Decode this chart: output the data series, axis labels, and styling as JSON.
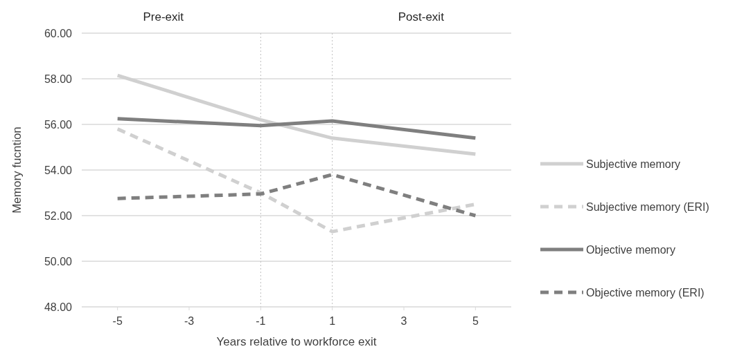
{
  "chart_data": {
    "type": "line",
    "xlabel": "Years relative to workforce exit",
    "ylabel": "Memory fucntion",
    "annotations": [
      "Pre-exit",
      "Post-exit"
    ],
    "x": [
      -5,
      -1,
      1,
      5
    ],
    "xlim": [
      -6,
      6
    ],
    "xticks": [
      -5,
      -3,
      -1,
      1,
      3,
      5
    ],
    "ylim": [
      48,
      60
    ],
    "yticks": [
      {
        "value": 48,
        "label": "48.00"
      },
      {
        "value": 50,
        "label": "50.00"
      },
      {
        "value": 52,
        "label": "52.00"
      },
      {
        "value": 54,
        "label": "54.00"
      },
      {
        "value": 56,
        "label": "56.00"
      },
      {
        "value": 58,
        "label": "58.00"
      },
      {
        "value": 60,
        "label": "60.00"
      }
    ],
    "grid": "y",
    "legend": "right",
    "marker": "none",
    "ref_lines": [
      {
        "axis": "x",
        "value": -1,
        "color": "#bfbfbf",
        "line_style": "dotted"
      },
      {
        "axis": "x",
        "value": 1,
        "color": "#bfbfbf",
        "line_style": "dotted"
      }
    ],
    "series": [
      {
        "name": "Subjective memory",
        "color": "#d0d0d0",
        "line_style": "solid",
        "values": [
          58.15,
          56.2,
          55.4,
          54.7
        ]
      },
      {
        "name": "Subjective memory (ERI)",
        "color": "#d0d0d0",
        "line_style": "dashed",
        "values": [
          55.8,
          53.0,
          51.3,
          52.5
        ]
      },
      {
        "name": "Objective memory",
        "color": "#7f7f7f",
        "line_style": "solid",
        "values": [
          56.25,
          55.95,
          56.15,
          55.4
        ]
      },
      {
        "name": "Objective memory (ERI)",
        "color": "#7f7f7f",
        "line_style": "dashed",
        "values": [
          52.75,
          52.95,
          53.8,
          52.0
        ]
      }
    ]
  }
}
